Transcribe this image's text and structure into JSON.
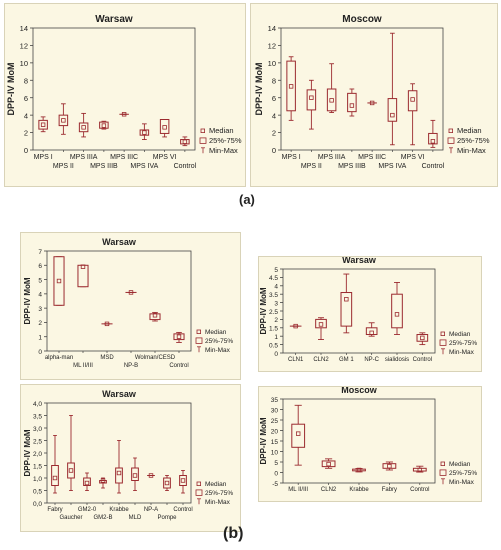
{
  "figure": {
    "caption_a": "(a)",
    "caption_b": "(b)"
  },
  "legend": {
    "median": "Median",
    "iqr": "25%-75%",
    "range": "Min-Max"
  },
  "colors": {
    "panel_bg": "#fbf7e3",
    "box": "#9b2a2f",
    "axis": "#444444",
    "text": "#222222"
  },
  "chart_data": [
    {
      "id": "a-warsaw",
      "type": "box",
      "title": "Warsaw",
      "ylabel": "DPP-IV MoM",
      "ylim": [
        0,
        14
      ],
      "yticks": [
        0,
        2,
        4,
        6,
        8,
        10,
        12,
        14
      ],
      "xtick_rows": [
        "row1",
        "row2",
        "row1",
        "row2",
        "row1",
        "row2",
        "row1",
        "row2"
      ],
      "boxes": [
        {
          "label": "MPS I",
          "min": 2.1,
          "q1": 2.4,
          "median": 2.9,
          "q3": 3.4,
          "max": 3.8
        },
        {
          "label": "MPS II",
          "min": 1.8,
          "q1": 2.8,
          "median": 3.4,
          "q3": 4.0,
          "max": 5.3
        },
        {
          "label": "MPS IIIA",
          "min": 1.5,
          "q1": 2.1,
          "median": 2.6,
          "q3": 3.1,
          "max": 4.2
        },
        {
          "label": "MPS IIIB",
          "min": 2.4,
          "q1": 2.5,
          "median": 2.8,
          "q3": 3.2,
          "max": 3.3
        },
        {
          "label": "MPS IIIC",
          "min": 4.1,
          "q1": 4.1,
          "median": 4.1,
          "q3": 4.1,
          "max": 4.1
        },
        {
          "label": "MPS IVA",
          "min": 1.2,
          "q1": 1.7,
          "median": 2.0,
          "q3": 2.3,
          "max": 3.0
        },
        {
          "label": "MPS VI",
          "min": 1.5,
          "q1": 1.9,
          "median": 2.6,
          "q3": 3.5,
          "max": 3.5
        },
        {
          "label": "Control",
          "min": 0.5,
          "q1": 0.7,
          "median": 0.95,
          "q3": 1.2,
          "max": 1.5
        }
      ],
      "legend_position": "bottom-right"
    },
    {
      "id": "a-moscow",
      "type": "box",
      "title": "Moscow",
      "ylabel": "DPP-IV MoM",
      "ylim": [
        0,
        14
      ],
      "yticks": [
        0,
        2,
        4,
        6,
        8,
        10,
        12,
        14
      ],
      "xtick_rows": [
        "row1",
        "row2",
        "row1",
        "row2",
        "row1",
        "row2",
        "row1",
        "row2"
      ],
      "boxes": [
        {
          "label": "MPS I",
          "min": 3.4,
          "q1": 4.5,
          "median": 7.3,
          "q3": 10.2,
          "max": 10.7
        },
        {
          "label": "MPS II",
          "min": 2.4,
          "q1": 4.6,
          "median": 6.0,
          "q3": 6.9,
          "max": 8.0
        },
        {
          "label": "MPS IIIA",
          "min": 4.3,
          "q1": 4.5,
          "median": 5.7,
          "q3": 7.0,
          "max": 9.9
        },
        {
          "label": "MPS IIIB",
          "min": 3.9,
          "q1": 4.4,
          "median": 5.1,
          "q3": 6.5,
          "max": 7.0
        },
        {
          "label": "MPS IIIC",
          "min": 5.4,
          "q1": 5.4,
          "median": 5.4,
          "q3": 5.4,
          "max": 5.4
        },
        {
          "label": "MPS IVA",
          "min": 0.6,
          "q1": 3.3,
          "median": 4.0,
          "q3": 5.9,
          "max": 13.4
        },
        {
          "label": "MPS VI",
          "min": 0.6,
          "q1": 4.5,
          "median": 5.8,
          "q3": 6.8,
          "max": 7.6
        },
        {
          "label": "Control",
          "min": 0.3,
          "q1": 0.7,
          "median": 1.0,
          "q3": 1.9,
          "max": 3.4
        }
      ],
      "legend_position": "bottom-right"
    },
    {
      "id": "b-warsaw-1",
      "type": "box",
      "title": "Warsaw",
      "ylabel": "DPP-IV MoM",
      "ylim": [
        0,
        7
      ],
      "yticks": [
        0,
        1,
        2,
        3,
        4,
        5,
        6,
        7
      ],
      "xtick_rows": [
        "row1",
        "row2",
        "row1",
        "row2",
        "row1",
        "row2"
      ],
      "boxes": [
        {
          "label": "alpha-man",
          "min": 3.2,
          "q1": 3.2,
          "median": 4.9,
          "q3": 6.6,
          "max": 6.6
        },
        {
          "label": "ML II/III",
          "min": 4.5,
          "q1": 4.5,
          "median": 5.9,
          "q3": 6.0,
          "max": 6.0
        },
        {
          "label": "MSD",
          "min": 1.9,
          "q1": 1.9,
          "median": 1.9,
          "q3": 1.9,
          "max": 1.9
        },
        {
          "label": "NP-B",
          "min": 4.1,
          "q1": 4.1,
          "median": 4.1,
          "q3": 4.1,
          "max": 4.1
        },
        {
          "label": "Wolman/CESD",
          "min": 2.1,
          "q1": 2.2,
          "median": 2.5,
          "q3": 2.6,
          "max": 2.7
        },
        {
          "label": "Control",
          "min": 0.6,
          "q1": 0.8,
          "median": 1.0,
          "q3": 1.2,
          "max": 1.3
        }
      ],
      "legend_position": "bottom-right"
    },
    {
      "id": "b-warsaw-2",
      "type": "box",
      "title": "Warsaw",
      "ylabel": "DPP-IV MoM",
      "ylim": [
        0,
        5
      ],
      "yticks": [
        0,
        0.5,
        1,
        1.5,
        2,
        2.5,
        3,
        3.5,
        4,
        4.5,
        5
      ],
      "xtick_rows": [
        "row1",
        "row1",
        "row1",
        "row1",
        "row1",
        "row1"
      ],
      "boxes": [
        {
          "label": "CLN1",
          "min": 1.6,
          "q1": 1.6,
          "median": 1.6,
          "q3": 1.6,
          "max": 1.6
        },
        {
          "label": "CLN2",
          "min": 0.8,
          "q1": 1.5,
          "median": 1.7,
          "q3": 2.0,
          "max": 2.1
        },
        {
          "label": "GM 1",
          "min": 1.2,
          "q1": 1.6,
          "median": 3.2,
          "q3": 3.6,
          "max": 4.7
        },
        {
          "label": "NP-C",
          "min": 1.0,
          "q1": 1.1,
          "median": 1.2,
          "q3": 1.5,
          "max": 1.8
        },
        {
          "label": "sialidosis",
          "min": 1.1,
          "q1": 1.5,
          "median": 2.3,
          "q3": 3.5,
          "max": 4.2
        },
        {
          "label": "Control",
          "min": 0.5,
          "q1": 0.7,
          "median": 0.9,
          "q3": 1.1,
          "max": 1.2
        }
      ],
      "legend_position": "bottom-right"
    },
    {
      "id": "b-warsaw-3",
      "type": "box",
      "title": "Warsaw",
      "ylabel": "DPP-IV MoM",
      "ylim": [
        0,
        4
      ],
      "yticks": [
        0,
        0.5,
        1,
        1.5,
        2,
        2.5,
        3,
        3.5,
        4
      ],
      "ytick_labels": [
        "0,0",
        "0,5",
        "1,0",
        "1,5",
        "2,0",
        "2,5",
        "3,0",
        "3,5",
        "4,0"
      ],
      "xtick_rows": [
        "row1",
        "row2",
        "row1",
        "row2",
        "row1",
        "row2",
        "row1",
        "row2",
        "row1"
      ],
      "boxes": [
        {
          "label": "Fabry",
          "min": 0.4,
          "q1": 0.7,
          "median": 1.0,
          "q3": 1.5,
          "max": 2.7
        },
        {
          "label": "Gaucher",
          "min": 0.5,
          "q1": 1.0,
          "median": 1.3,
          "q3": 1.6,
          "max": 3.5
        },
        {
          "label": "GM2-0",
          "min": 0.5,
          "q1": 0.7,
          "median": 0.8,
          "q3": 1.0,
          "max": 1.2
        },
        {
          "label": "GM2-B",
          "min": 0.6,
          "q1": 0.8,
          "median": 0.9,
          "q3": 0.9,
          "max": 1.0
        },
        {
          "label": "Krabbe",
          "min": 0.4,
          "q1": 0.8,
          "median": 1.2,
          "q3": 1.4,
          "max": 2.5
        },
        {
          "label": "MLD",
          "min": 0.5,
          "q1": 0.9,
          "median": 1.1,
          "q3": 1.4,
          "max": 1.8
        },
        {
          "label": "NP-A",
          "min": 1.1,
          "q1": 1.1,
          "median": 1.1,
          "q3": 1.1,
          "max": 1.1
        },
        {
          "label": "Pompe",
          "min": 0.5,
          "q1": 0.6,
          "median": 0.8,
          "q3": 1.0,
          "max": 1.1
        },
        {
          "label": "Control",
          "min": 0.4,
          "q1": 0.7,
          "median": 0.9,
          "q3": 1.1,
          "max": 1.3
        }
      ],
      "legend_position": "bottom-right"
    },
    {
      "id": "b-moscow",
      "type": "box",
      "title": "Moscow",
      "ylabel": "DPP-IV MoM",
      "ylim": [
        -5,
        35
      ],
      "yticks": [
        -5,
        0,
        5,
        10,
        15,
        20,
        25,
        30,
        35
      ],
      "xtick_rows": [
        "row1",
        "row1",
        "row1",
        "row1",
        "row1"
      ],
      "boxes": [
        {
          "label": "ML II/III",
          "min": 3.5,
          "q1": 12.0,
          "median": 18.5,
          "q3": 23.0,
          "max": 32.0
        },
        {
          "label": "CLN2",
          "min": 2.0,
          "q1": 2.8,
          "median": 4.0,
          "q3": 5.5,
          "max": 6.5
        },
        {
          "label": "Krabbe",
          "min": 0.3,
          "q1": 0.8,
          "median": 1.2,
          "q3": 1.6,
          "max": 1.9
        },
        {
          "label": "Fabry",
          "min": 1.2,
          "q1": 2.0,
          "median": 3.0,
          "q3": 4.2,
          "max": 5.0
        },
        {
          "label": "Control",
          "min": 0.2,
          "q1": 0.7,
          "median": 1.2,
          "q3": 2.0,
          "max": 3.0
        }
      ],
      "legend_position": "bottom-right"
    }
  ]
}
